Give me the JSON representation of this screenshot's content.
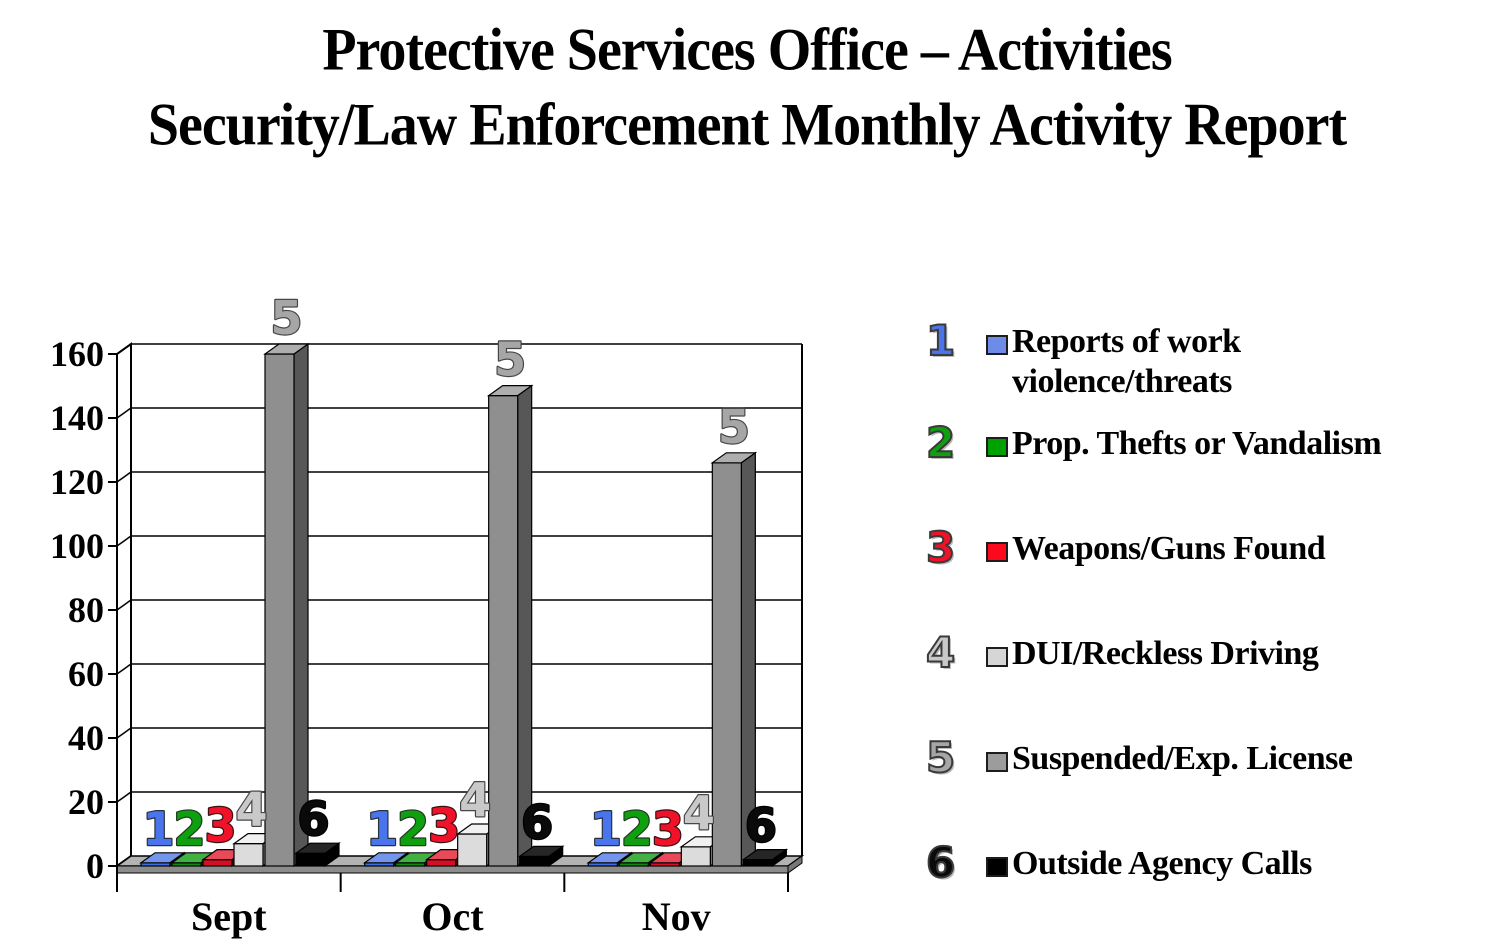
{
  "title": {
    "line1": "Protective Services Office – Activities",
    "line2": "Security/Law Enforcement Monthly Activity Report"
  },
  "chart_data": {
    "type": "bar",
    "style": "3d-clustered",
    "title": "Security/Law Enforcement Monthly Activity Report",
    "categories": [
      "Sept",
      "Oct",
      "Nov"
    ],
    "series": [
      {
        "num": "1",
        "name": "Reports of work violence/threats",
        "values": [
          1,
          1,
          1
        ],
        "colors": {
          "front": "#3F6BE0",
          "top": "#7395EC",
          "side": "#1E3C94"
        },
        "label_fill": "#4A75EA",
        "label_stroke": "#28313F"
      },
      {
        "num": "2",
        "name": "Prop. Thefts or Vandalism",
        "values": [
          1,
          1,
          1
        ],
        "colors": {
          "front": "#0A8A0A",
          "top": "#42B042",
          "side": "#064D06"
        },
        "label_fill": "#0FA00F",
        "label_stroke": "#233823"
      },
      {
        "num": "3",
        "name": "Weapons/Guns Found",
        "values": [
          2,
          2,
          1
        ],
        "colors": {
          "front": "#D40E26",
          "top": "#E84A5A",
          "side": "#7E0916"
        },
        "label_fill": "#EF1228",
        "label_stroke": "#3A1016"
      },
      {
        "num": "4",
        "name": "DUI/Reckless Driving",
        "values": [
          7,
          10,
          6
        ],
        "colors": {
          "front": "#DCDCDC",
          "top": "#F1F1F1",
          "side": "#9A9A9A"
        },
        "label_fill": "#C9C9C9",
        "label_stroke": "#474747"
      },
      {
        "num": "5",
        "name": "Suspended/Exp. License",
        "values": [
          160,
          147,
          126
        ],
        "colors": {
          "front": "#8F8F8F",
          "top": "#AEAEAE",
          "side": "#575757"
        },
        "label_fill": "#A6A6A6",
        "label_stroke": "#474747"
      },
      {
        "num": "6",
        "name": "Outside Agency Calls",
        "values": [
          4,
          3,
          2
        ],
        "colors": {
          "front": "#000000",
          "top": "#262626",
          "side": "#000000"
        },
        "label_fill": "#0A0A0A",
        "label_stroke": "#000000"
      }
    ],
    "ylim": [
      0,
      160
    ],
    "ytick_step": 20,
    "yticks": [
      "0",
      "20",
      "40",
      "60",
      "80",
      "100",
      "120",
      "140",
      "160"
    ],
    "grid": true,
    "legend_position": "right",
    "wall_color": "#FFFFFF",
    "floor_top_color": "#B3B3B3",
    "floor_front_color": "#8C8C8C",
    "gridline_color": "#000000"
  },
  "legend": {
    "items": [
      {
        "number": "1",
        "label": "Reports of work violence/threats",
        "color": "#6C8CE8",
        "num_color": "#4A75EA"
      },
      {
        "number": "2",
        "label": "Prop. Thefts or Vandalism",
        "color": "#00A000",
        "num_color": "#0FA00F"
      },
      {
        "number": "3",
        "label": "Weapons/Guns Found",
        "color": "#FB0A1E",
        "num_color": "#EF1228"
      },
      {
        "number": "4",
        "label": "DUI/Reckless Driving",
        "color": "#D6D6D6",
        "num_color": "#C9C9C9"
      },
      {
        "number": "5",
        "label": "Suspended/Exp. License",
        "color": "#9C9C9C",
        "num_color": "#A6A6A6"
      },
      {
        "number": "6",
        "label": "Outside Agency Calls",
        "color": "#000000",
        "num_color": "#0A0A0A"
      }
    ]
  }
}
